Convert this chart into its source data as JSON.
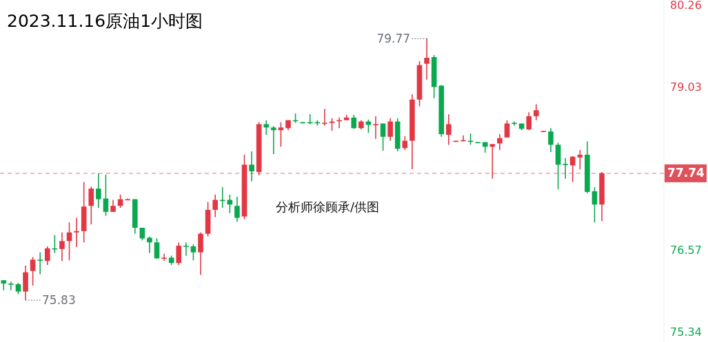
{
  "chart_data": {
    "type": "candlestick",
    "title": "2023.11.16原油1小时图",
    "categories": [
      null,
      null,
      null,
      null,
      null,
      null,
      null,
      null,
      null,
      null,
      null,
      null,
      null,
      null,
      null,
      null,
      null,
      null,
      null,
      null,
      null,
      null,
      null,
      null,
      null,
      null,
      null,
      null,
      null,
      null,
      null,
      null,
      null,
      null,
      null,
      null,
      null,
      null,
      null,
      null,
      null,
      null,
      null,
      null,
      null,
      null,
      null,
      null,
      null,
      null,
      null,
      null,
      null,
      null,
      null,
      null,
      null,
      null,
      null,
      null,
      null,
      null,
      null,
      null,
      null,
      null,
      null,
      null,
      null,
      null,
      null,
      null,
      null,
      null,
      null,
      null,
      null,
      null,
      null,
      null,
      null,
      null,
      null,
      null,
      null,
      null,
      null,
      null,
      null,
      null,
      null
    ],
    "ohlc": [
      [
        76.13,
        76.13,
        75.98,
        76.08
      ],
      [
        76.08,
        76.11,
        75.98,
        76.07
      ],
      [
        76.07,
        76.09,
        75.92,
        75.96
      ],
      [
        75.96,
        76.35,
        75.83,
        76.25
      ],
      [
        76.27,
        76.48,
        76.05,
        76.44
      ],
      [
        76.44,
        76.55,
        76.22,
        76.43
      ],
      [
        76.42,
        76.64,
        76.36,
        76.61
      ],
      [
        76.61,
        76.81,
        76.54,
        76.6
      ],
      [
        76.6,
        76.85,
        76.42,
        76.72
      ],
      [
        76.72,
        77.0,
        76.43,
        76.85
      ],
      [
        76.85,
        77.07,
        76.63,
        76.87
      ],
      [
        76.87,
        77.61,
        76.7,
        77.24
      ],
      [
        77.25,
        77.54,
        76.97,
        77.51
      ],
      [
        77.51,
        77.74,
        77.22,
        77.35
      ],
      [
        77.36,
        77.72,
        77.1,
        77.16
      ],
      [
        77.16,
        77.34,
        77.16,
        77.25
      ],
      [
        77.25,
        77.42,
        77.22,
        77.35
      ],
      [
        77.35,
        77.36,
        77.34,
        77.35
      ],
      [
        77.35,
        77.35,
        76.83,
        76.92
      ],
      [
        76.92,
        76.92,
        76.73,
        76.76
      ],
      [
        76.77,
        76.79,
        76.54,
        76.7
      ],
      [
        76.7,
        76.76,
        76.45,
        76.46
      ],
      [
        76.46,
        76.53,
        76.42,
        76.47
      ],
      [
        76.47,
        76.5,
        76.36,
        76.39
      ],
      [
        76.39,
        76.7,
        76.36,
        76.65
      ],
      [
        76.65,
        76.7,
        76.5,
        76.64
      ],
      [
        76.64,
        76.67,
        76.43,
        76.55
      ],
      [
        76.55,
        76.85,
        76.21,
        76.83
      ],
      [
        76.83,
        77.31,
        76.79,
        77.19
      ],
      [
        77.19,
        77.42,
        77.08,
        77.34
      ],
      [
        77.34,
        77.53,
        77.22,
        77.33
      ],
      [
        77.34,
        77.42,
        77.14,
        77.27
      ],
      [
        77.25,
        77.39,
        77.01,
        77.07
      ],
      [
        77.09,
        78.02,
        77.05,
        77.87
      ],
      [
        77.87,
        78.07,
        77.62,
        77.77
      ],
      [
        77.76,
        78.51,
        77.71,
        78.48
      ],
      [
        78.48,
        78.54,
        78.32,
        78.43
      ],
      [
        78.43,
        78.45,
        78.03,
        78.39
      ],
      [
        78.39,
        78.51,
        78.14,
        78.43
      ],
      [
        78.42,
        78.54,
        78.39,
        78.54
      ],
      [
        78.54,
        78.64,
        78.5,
        78.53
      ],
      [
        78.51,
        78.51,
        78.49,
        78.5
      ],
      [
        78.51,
        78.63,
        78.48,
        78.5
      ],
      [
        78.51,
        78.54,
        78.46,
        78.5
      ],
      [
        78.49,
        78.71,
        78.46,
        78.5
      ],
      [
        78.5,
        78.57,
        78.38,
        78.52
      ],
      [
        78.53,
        78.58,
        78.42,
        78.54
      ],
      [
        78.54,
        78.62,
        78.54,
        78.58
      ],
      [
        78.58,
        78.62,
        78.41,
        78.42
      ],
      [
        78.42,
        78.54,
        78.4,
        78.52
      ],
      [
        78.52,
        78.55,
        78.35,
        78.47
      ],
      [
        78.47,
        78.6,
        78.26,
        78.48
      ],
      [
        78.49,
        78.49,
        78.08,
        78.29
      ],
      [
        78.29,
        78.57,
        78.23,
        78.52
      ],
      [
        78.52,
        78.57,
        78.07,
        78.11
      ],
      [
        78.12,
        78.3,
        78.09,
        78.23
      ],
      [
        78.23,
        78.93,
        77.8,
        78.85
      ],
      [
        78.85,
        79.43,
        78.75,
        79.37
      ],
      [
        79.39,
        79.77,
        79.15,
        79.48
      ],
      [
        79.49,
        79.52,
        78.87,
        79.04
      ],
      [
        79.06,
        79.07,
        78.29,
        78.33
      ],
      [
        78.32,
        78.63,
        78.17,
        78.48
      ],
      [
        78.22,
        78.23,
        78.21,
        78.23
      ],
      [
        78.23,
        78.31,
        78.22,
        78.24
      ],
      [
        78.23,
        78.34,
        78.17,
        78.22
      ],
      [
        78.21,
        78.21,
        78.2,
        78.2
      ],
      [
        78.21,
        78.21,
        78.05,
        78.14
      ],
      [
        78.14,
        78.18,
        77.66,
        78.18
      ],
      [
        78.19,
        78.33,
        78.09,
        78.27
      ],
      [
        78.28,
        78.54,
        78.28,
        78.49
      ],
      [
        78.5,
        78.52,
        78.46,
        78.49
      ],
      [
        78.49,
        78.49,
        78.39,
        78.41
      ],
      [
        78.4,
        78.66,
        78.39,
        78.6
      ],
      [
        78.6,
        78.78,
        78.54,
        78.69
      ],
      [
        78.37,
        78.38,
        78.36,
        78.38
      ],
      [
        78.37,
        78.42,
        78.06,
        78.17
      ],
      [
        78.17,
        78.2,
        77.5,
        77.87
      ],
      [
        77.88,
        77.97,
        77.66,
        77.87
      ],
      [
        77.86,
        78.0,
        77.61,
        77.99
      ],
      [
        77.98,
        78.09,
        77.8,
        78.02
      ],
      [
        78.02,
        78.22,
        77.44,
        77.46
      ],
      [
        77.47,
        77.53,
        77.0,
        77.27
      ],
      [
        77.27,
        77.76,
        77.02,
        77.74
      ],
      null,
      null,
      null,
      null,
      null,
      null,
      null,
      null
    ],
    "ylim": [
      75.2,
      80.35
    ],
    "yticks": [
      80.26,
      79.03,
      76.57,
      75.34
    ],
    "tick_labels": "y",
    "grid": false,
    "ref_lines": [
      {
        "axis": "y",
        "value": 77.74,
        "label": "77.74",
        "color": "#e0505a",
        "line_style": "dashed"
      }
    ],
    "annotations": [
      "79.77",
      "75.83",
      "分析师徐顾承/供图"
    ]
  }
}
